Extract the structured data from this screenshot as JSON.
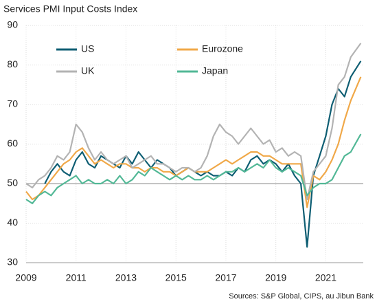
{
  "chart_data": {
    "type": "line",
    "title": "Services PMI Input Costs Index",
    "source": "Sources: S&P Global, CIPS, au Jibun Bank",
    "x": [
      2009,
      2009.25,
      2009.5,
      2009.75,
      2010,
      2010.25,
      2010.5,
      2010.75,
      2011,
      2011.25,
      2011.5,
      2011.75,
      2012,
      2012.25,
      2012.5,
      2012.75,
      2013,
      2013.25,
      2013.5,
      2013.75,
      2014,
      2014.25,
      2014.5,
      2014.75,
      2015,
      2015.25,
      2015.5,
      2015.75,
      2016,
      2016.25,
      2016.5,
      2016.75,
      2017,
      2017.25,
      2017.5,
      2017.75,
      2018,
      2018.25,
      2018.5,
      2018.75,
      2019,
      2019.25,
      2019.5,
      2019.75,
      2020,
      2020.25,
      2020.5,
      2020.75,
      2021,
      2021.25,
      2021.5,
      2021.75,
      2022,
      2022.4
    ],
    "series": [
      {
        "name": "US",
        "color": "#0e5e73",
        "values": [
          null,
          null,
          null,
          50,
          53,
          55,
          53,
          52,
          56,
          58,
          55,
          54,
          57,
          56,
          55,
          54,
          57,
          55,
          58,
          56,
          54,
          56,
          55,
          54,
          52,
          53,
          54,
          53,
          52,
          53,
          52,
          52,
          53,
          52,
          54,
          53,
          56,
          57,
          55,
          56,
          55,
          53,
          55,
          52,
          50,
          34,
          52,
          57,
          62,
          70,
          74,
          72,
          77,
          81
        ]
      },
      {
        "name": "Eurozone",
        "color": "#f0a848",
        "values": [
          48,
          46,
          47,
          49,
          51,
          53,
          55,
          56,
          58,
          59,
          57,
          55,
          56,
          55,
          54,
          55,
          55,
          54,
          54,
          53,
          54,
          54,
          53,
          53,
          52,
          53,
          54,
          53,
          53,
          53,
          54,
          55,
          56,
          55,
          56,
          57,
          58,
          58,
          57,
          57,
          56,
          55,
          55,
          55,
          55,
          44,
          52,
          51,
          53,
          56,
          60,
          66,
          71,
          77
        ]
      },
      {
        "name": "UK",
        "color": "#b3b3b3",
        "values": [
          50,
          49,
          51,
          52,
          54,
          57,
          56,
          58,
          65,
          63,
          59,
          56,
          58,
          56,
          55,
          56,
          57,
          54,
          55,
          56,
          57,
          55,
          55,
          54,
          53,
          54,
          54,
          53,
          54,
          57,
          62,
          65,
          63,
          62,
          60,
          62,
          64,
          62,
          60,
          61,
          58,
          59,
          57,
          58,
          57,
          46,
          53,
          55,
          57,
          64,
          75,
          77,
          82,
          85.5
        ]
      },
      {
        "name": "Japan",
        "color": "#52b896",
        "values": [
          46,
          45,
          47,
          48,
          47,
          49,
          50,
          51,
          52,
          50,
          51,
          50,
          50,
          51,
          50,
          52,
          50,
          51,
          53,
          52,
          54,
          53,
          52,
          51,
          52,
          51,
          52,
          51,
          51,
          52,
          51,
          52,
          53,
          53,
          54,
          53,
          54,
          55,
          54,
          56,
          54,
          53,
          54,
          53,
          52,
          47,
          49,
          50,
          50,
          51,
          54,
          57,
          58,
          62.5
        ]
      }
    ],
    "xlim": [
      2009,
      2022.5
    ],
    "xticks": [
      2009,
      2011,
      2013,
      2015,
      2017,
      2019,
      2021
    ],
    "ylim": [
      30,
      90
    ],
    "yticks": [
      30,
      40,
      50,
      60,
      70,
      80,
      90
    ],
    "reference_line": 50,
    "grid": true
  }
}
